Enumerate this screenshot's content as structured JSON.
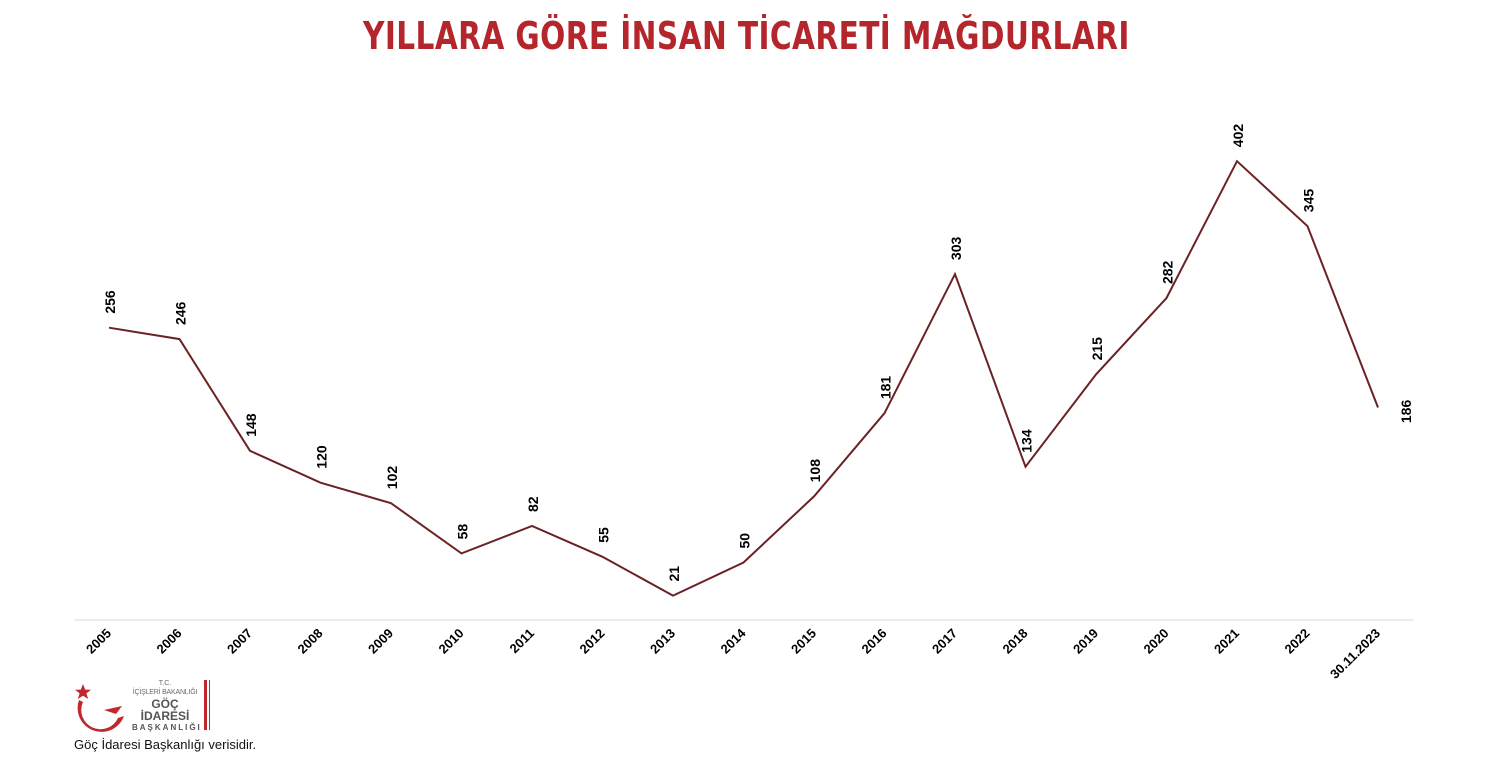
{
  "colors": {
    "title": "#b5262c",
    "line": "#6b2224",
    "axis": "#d9d9d9",
    "logo_red": "#c0282f"
  },
  "chart_data": {
    "type": "line",
    "title": "YILLARA GÖRE İNSAN TİCARETİ MAĞDURLARI",
    "xlabel": "",
    "ylabel": "",
    "categories": [
      "2005",
      "2006",
      "2007",
      "2008",
      "2009",
      "2010",
      "2011",
      "2012",
      "2013",
      "2014",
      "2015",
      "2016",
      "2017",
      "2018",
      "2019",
      "2020",
      "2021",
      "2022",
      "30.11.2023"
    ],
    "series": [
      {
        "values": [
          256,
          246,
          148,
          120,
          102,
          58,
          82,
          55,
          21,
          50,
          108,
          181,
          303,
          134,
          215,
          282,
          402,
          345,
          186
        ]
      }
    ],
    "ylim": [
      0,
      430
    ],
    "grid": false,
    "legend": "none",
    "data_labels": true
  },
  "logo": {
    "tc": "T.C.",
    "ministry": "İÇİŞLERİ BAKANLIĞI",
    "name": "GÖÇ İDARESİ",
    "dept": "BAŞKANLIĞI",
    "icon": "crescent-star-icon"
  },
  "source": "Göç İdaresi Başkanlığı verisidir."
}
